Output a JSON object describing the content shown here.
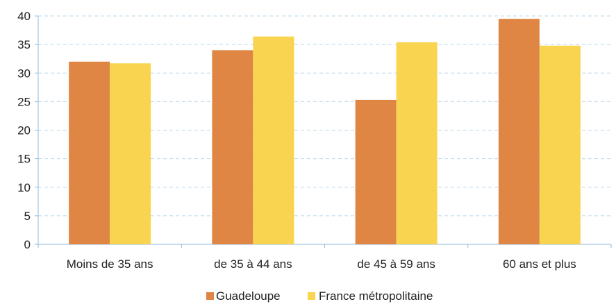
{
  "chart_data": {
    "type": "bar",
    "title": "",
    "xlabel": "",
    "ylabel": "",
    "ylim": [
      0,
      40
    ],
    "yticks": [
      0,
      5,
      10,
      15,
      20,
      25,
      30,
      35,
      40
    ],
    "grid": true,
    "legend_position": "bottom",
    "categories": [
      "Moins de 35 ans",
      "de 35 à 44 ans",
      "de 45 à 59 ans",
      "60 ans et plus"
    ],
    "series": [
      {
        "name": "Guadeloupe",
        "color": "#e08644",
        "values": [
          32.0,
          34.0,
          25.3,
          39.5
        ]
      },
      {
        "name": "France métropolitaine",
        "color": "#f9d450",
        "values": [
          31.7,
          36.4,
          35.4,
          34.8
        ]
      }
    ]
  }
}
